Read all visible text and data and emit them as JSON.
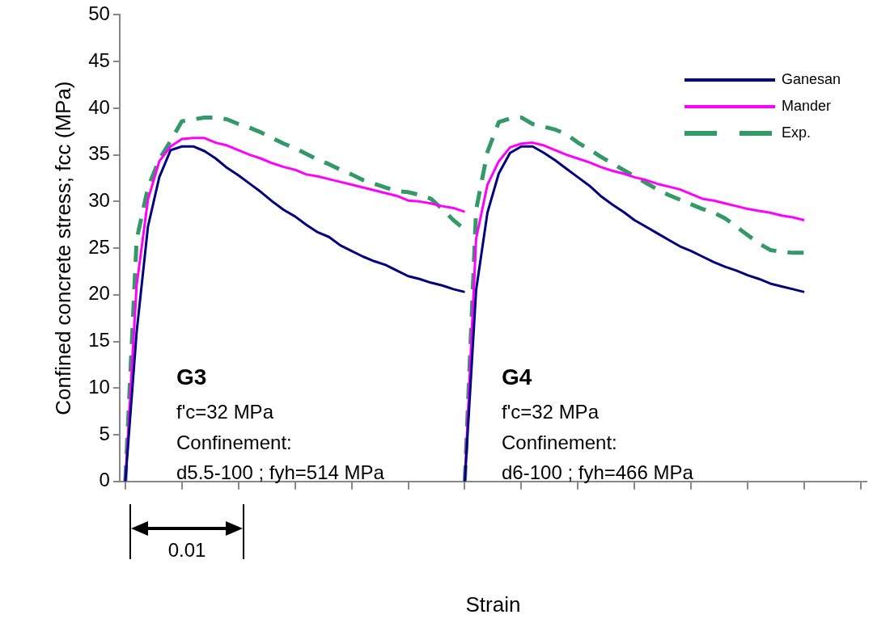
{
  "chart_data": {
    "type": "line",
    "xlabel": "Strain",
    "ylabel": "Confined concrete stress; fcc (MPa)",
    "categories": [
      null,
      null,
      null,
      null,
      null,
      null,
      null,
      null,
      null,
      null,
      null,
      null,
      null,
      null,
      null,
      null,
      null,
      null,
      null,
      null,
      null,
      null,
      null,
      null,
      null,
      null,
      null,
      null,
      null,
      null,
      null,
      null,
      null,
      null,
      null,
      null,
      null,
      null,
      null,
      null,
      null,
      null,
      null,
      null,
      null,
      null,
      null,
      null,
      null,
      null,
      null,
      null,
      null,
      null,
      null,
      null,
      null,
      null,
      null,
      null,
      null,
      null,
      null,
      null,
      null,
      null
    ],
    "ylim": [
      0,
      50
    ],
    "yticks": [
      0,
      5,
      10,
      15,
      20,
      25,
      30,
      35,
      40,
      45,
      50
    ],
    "tick_labels": "y",
    "grid": false,
    "legend": "top right",
    "marker": "none",
    "annotations": [
      "G3",
      "f'c=32 MPa",
      "Confinement:",
      "d5.5-100 ; fyh=514 MPa",
      "G4",
      "f'c=32 MPa",
      "Confinement:",
      "d6-100 ; fyh=466 MPa",
      "0.01"
    ],
    "series": [
      {
        "name": "Ganesan",
        "color": "#000080",
        "line_style": "solid",
        "values": [
          0,
          16,
          27.3,
          32.6,
          35.5,
          35.9,
          35.9,
          35.4,
          34.6,
          33.6,
          32.8,
          31.9,
          31.0,
          30.0,
          29.1,
          28.4,
          27.5,
          26.7,
          26.2,
          25.3,
          24.7,
          24.1,
          23.6,
          23.2,
          22.6,
          22.0,
          21.7,
          21.3,
          21.0,
          20.6,
          20.3,
          null,
          null,
          null,
          null,
          null,
          null,
          null,
          null,
          null,
          null,
          null,
          null,
          null,
          null,
          null,
          null,
          null,
          null,
          null,
          null,
          null,
          null,
          null,
          null,
          null,
          null,
          null,
          null,
          null,
          null,
          null,
          null,
          null,
          null,
          null
        ]
      },
      {
        "name": "Mander",
        "color": "#ff00ff",
        "line_style": "solid",
        "values": [
          0,
          21,
          30.2,
          34.3,
          35.9,
          36.7,
          36.8,
          36.8,
          36.3,
          36.0,
          35.5,
          35.0,
          34.6,
          34.1,
          33.7,
          33.4,
          32.9,
          32.7,
          32.4,
          32.1,
          31.8,
          31.5,
          31.2,
          30.9,
          30.6,
          30.1,
          30.0,
          29.8,
          29.5,
          29.3,
          28.9,
          null,
          null,
          null,
          null,
          null,
          null,
          null,
          null,
          null,
          null,
          null,
          null,
          null,
          null,
          null,
          null,
          null,
          null,
          null,
          null,
          null,
          null,
          null,
          null,
          null,
          null,
          null,
          null,
          null,
          null,
          null,
          null,
          null,
          null,
          null
        ]
      },
      {
        "name": "Exp.",
        "color": "#339966",
        "line_style": "dashed",
        "values": [
          0,
          25.9,
          31.5,
          34.5,
          36.5,
          38.6,
          38.8,
          39.0,
          39.0,
          38.8,
          38.3,
          37.9,
          37.4,
          36.8,
          36.2,
          35.7,
          35.1,
          34.5,
          34.0,
          33.4,
          32.9,
          32.3,
          31.9,
          31.5,
          31.1,
          31.0,
          30.7,
          30.3,
          29.2,
          28.0,
          27.0,
          null,
          null,
          null,
          null,
          null,
          null,
          null,
          null,
          null,
          null,
          null,
          null,
          null,
          null,
          null,
          null,
          null,
          null,
          null,
          null,
          null,
          null,
          null,
          null,
          null,
          null,
          null,
          null,
          null,
          null,
          null,
          null,
          null,
          null,
          null
        ]
      },
      {
        "color": "#000080",
        "line_style": "solid",
        "values": [
          null,
          null,
          null,
          null,
          null,
          null,
          null,
          null,
          null,
          null,
          null,
          null,
          null,
          null,
          null,
          null,
          null,
          null,
          null,
          null,
          null,
          null,
          null,
          null,
          null,
          null,
          null,
          null,
          null,
          null,
          0,
          20.5,
          28.8,
          33.0,
          35.2,
          35.9,
          35.9,
          35.2,
          34.4,
          33.5,
          32.6,
          31.7,
          30.6,
          29.7,
          28.9,
          28.0,
          27.3,
          26.6,
          25.9,
          25.2,
          24.7,
          24.1,
          23.5,
          23.0,
          22.6,
          22.1,
          21.7,
          21.2,
          20.9,
          20.6,
          20.3,
          null,
          null,
          null,
          null,
          null
        ]
      },
      {
        "color": "#ff00ff",
        "line_style": "solid",
        "values": [
          null,
          null,
          null,
          null,
          null,
          null,
          null,
          null,
          null,
          null,
          null,
          null,
          null,
          null,
          null,
          null,
          null,
          null,
          null,
          null,
          null,
          null,
          null,
          null,
          null,
          null,
          null,
          null,
          null,
          null,
          0,
          26,
          31.8,
          34.3,
          35.8,
          36.2,
          36.3,
          36.0,
          35.5,
          35.0,
          34.6,
          34.2,
          33.7,
          33.3,
          33.0,
          32.6,
          32.3,
          31.9,
          31.6,
          31.3,
          30.8,
          30.3,
          30.1,
          29.8,
          29.5,
          29.2,
          29.0,
          28.8,
          28.5,
          28.3,
          28.0,
          null,
          null,
          null,
          null,
          null
        ]
      },
      {
        "color": "#339966",
        "line_style": "dashed",
        "values": [
          null,
          null,
          null,
          null,
          null,
          null,
          null,
          null,
          null,
          null,
          null,
          null,
          null,
          null,
          null,
          null,
          null,
          null,
          null,
          null,
          null,
          null,
          null,
          null,
          null,
          null,
          null,
          null,
          null,
          null,
          0,
          29.1,
          35.3,
          38.5,
          38.9,
          39.0,
          38.3,
          38.0,
          37.7,
          37.2,
          36.3,
          35.6,
          34.8,
          34.1,
          33.4,
          32.7,
          32.0,
          31.3,
          30.7,
          30.2,
          29.7,
          29.2,
          28.8,
          28.2,
          27.3,
          26.4,
          25.5,
          24.8,
          24.6,
          24.5,
          24.5,
          null,
          null,
          null,
          null,
          null
        ]
      }
    ]
  }
}
